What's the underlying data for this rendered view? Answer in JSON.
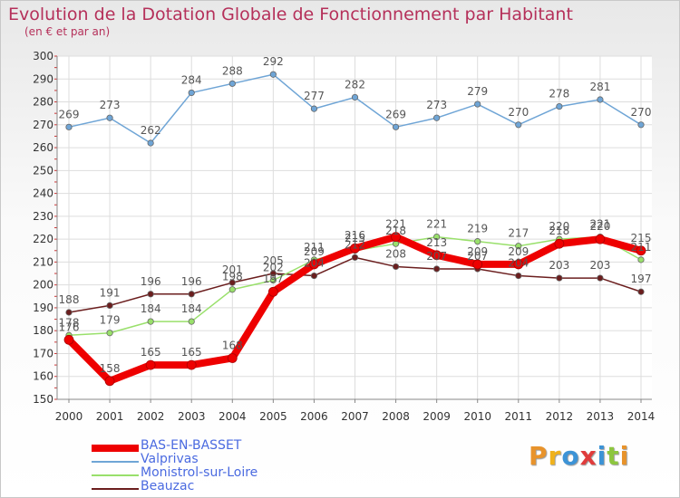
{
  "colors": {
    "title": "#b5305a",
    "axis": "#888888",
    "grid": "#dddddd",
    "tick_text": "#333333",
    "legend_text": "#4a6ae0",
    "logo": [
      "#e8932b",
      "#f0b21c",
      "#3c93d6",
      "#e03c3c",
      "#3c93d6",
      "#8dc63f"
    ]
  },
  "legend": {
    "items": [
      {
        "label": "BAS-EN-BASSET",
        "color": "#ee0000"
      },
      {
        "label": "Valprivas",
        "color": "#6fa5d6"
      },
      {
        "label": "Monistrol-sur-Loire",
        "color": "#99e06b"
      },
      {
        "label": "Beauzac",
        "color": "#6b1e1e"
      }
    ]
  },
  "logo": {
    "letters": [
      "P",
      "r",
      "o",
      "x",
      "i",
      "t",
      "i"
    ]
  },
  "chart_data": {
    "type": "line",
    "title": "Evolution de la Dotation Globale de Fonctionnement par Habitant",
    "subtitle": "(en € et par an)",
    "xlabel": "",
    "ylabel": "",
    "x": [
      "2000",
      "2001",
      "2002",
      "2003",
      "2004",
      "2005",
      "2006",
      "2007",
      "2008",
      "2009",
      "2010",
      "2011",
      "2012",
      "2013",
      "2014"
    ],
    "ylim": [
      150,
      300
    ],
    "yticks": [
      150,
      160,
      170,
      180,
      190,
      200,
      210,
      220,
      230,
      240,
      250,
      260,
      270,
      280,
      290,
      300
    ],
    "grid": true,
    "series": [
      {
        "name": "Valprivas",
        "color": "#6fa5d6",
        "values": [
          269,
          273,
          262,
          284,
          288,
          292,
          277,
          282,
          269,
          273,
          279,
          270,
          278,
          281,
          270
        ]
      },
      {
        "name": "Beauzac",
        "color": "#6b1e1e",
        "values": [
          188,
          191,
          196,
          196,
          201,
          205,
          204,
          212,
          208,
          207,
          207,
          204,
          203,
          203,
          197
        ]
      },
      {
        "name": "Monistrol-sur-Loire",
        "color": "#99e06b",
        "values": [
          178,
          179,
          184,
          184,
          198,
          202,
          211,
          215,
          218,
          221,
          219,
          217,
          220,
          221,
          211
        ]
      },
      {
        "name": "BAS-EN-BASSET",
        "color": "#ee0000",
        "values": [
          176,
          158,
          165,
          165,
          168,
          197,
          209,
          216,
          221,
          213,
          209,
          209,
          218,
          220,
          215
        ]
      }
    ]
  }
}
